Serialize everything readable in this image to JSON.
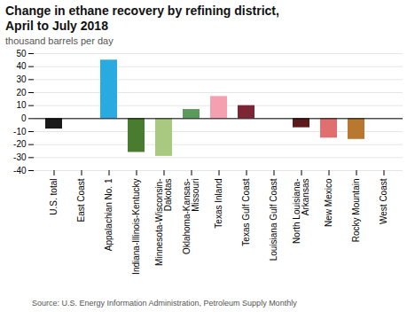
{
  "chart_data": {
    "type": "bar",
    "title": "Change in ethane recovery by refining district,\nApril to July 2018",
    "subtitle": "thousand barrels per day",
    "source": "Source: U.S. Energy Information Administration, Petroleum Supply Monthly",
    "categories": [
      "U.S. total",
      "East Coast",
      "Appalachian No. 1",
      "Indiana-Illinois-Kentucky",
      "Minnesota-Wisconsin-\nDakotas",
      "Oklahoma-Kansas-\nMissouri",
      "Texas Inland",
      "Texas Gulf Coast",
      "Louisiana Gulf Coast",
      "North Louisiana-\nArkansas",
      "New Mexico",
      "Rocky Mountain",
      "West Coast"
    ],
    "values": [
      -8,
      0,
      45,
      -26,
      -29,
      7,
      17,
      10,
      0,
      -7,
      -15,
      -16,
      0
    ],
    "colors": [
      "#1a1a1a",
      "#cccccc",
      "#29abe2",
      "#4a7c2f",
      "#a8c97f",
      "#5a9a5a",
      "#f4a0b0",
      "#7b2535",
      "#cccccc",
      "#5c1a1a",
      "#e07070",
      "#b87830",
      "#cccccc"
    ],
    "ylim": [
      -40,
      50
    ],
    "yticks": [
      -40,
      -30,
      -20,
      -10,
      0,
      10,
      20,
      30,
      40,
      50
    ],
    "grid": true
  }
}
